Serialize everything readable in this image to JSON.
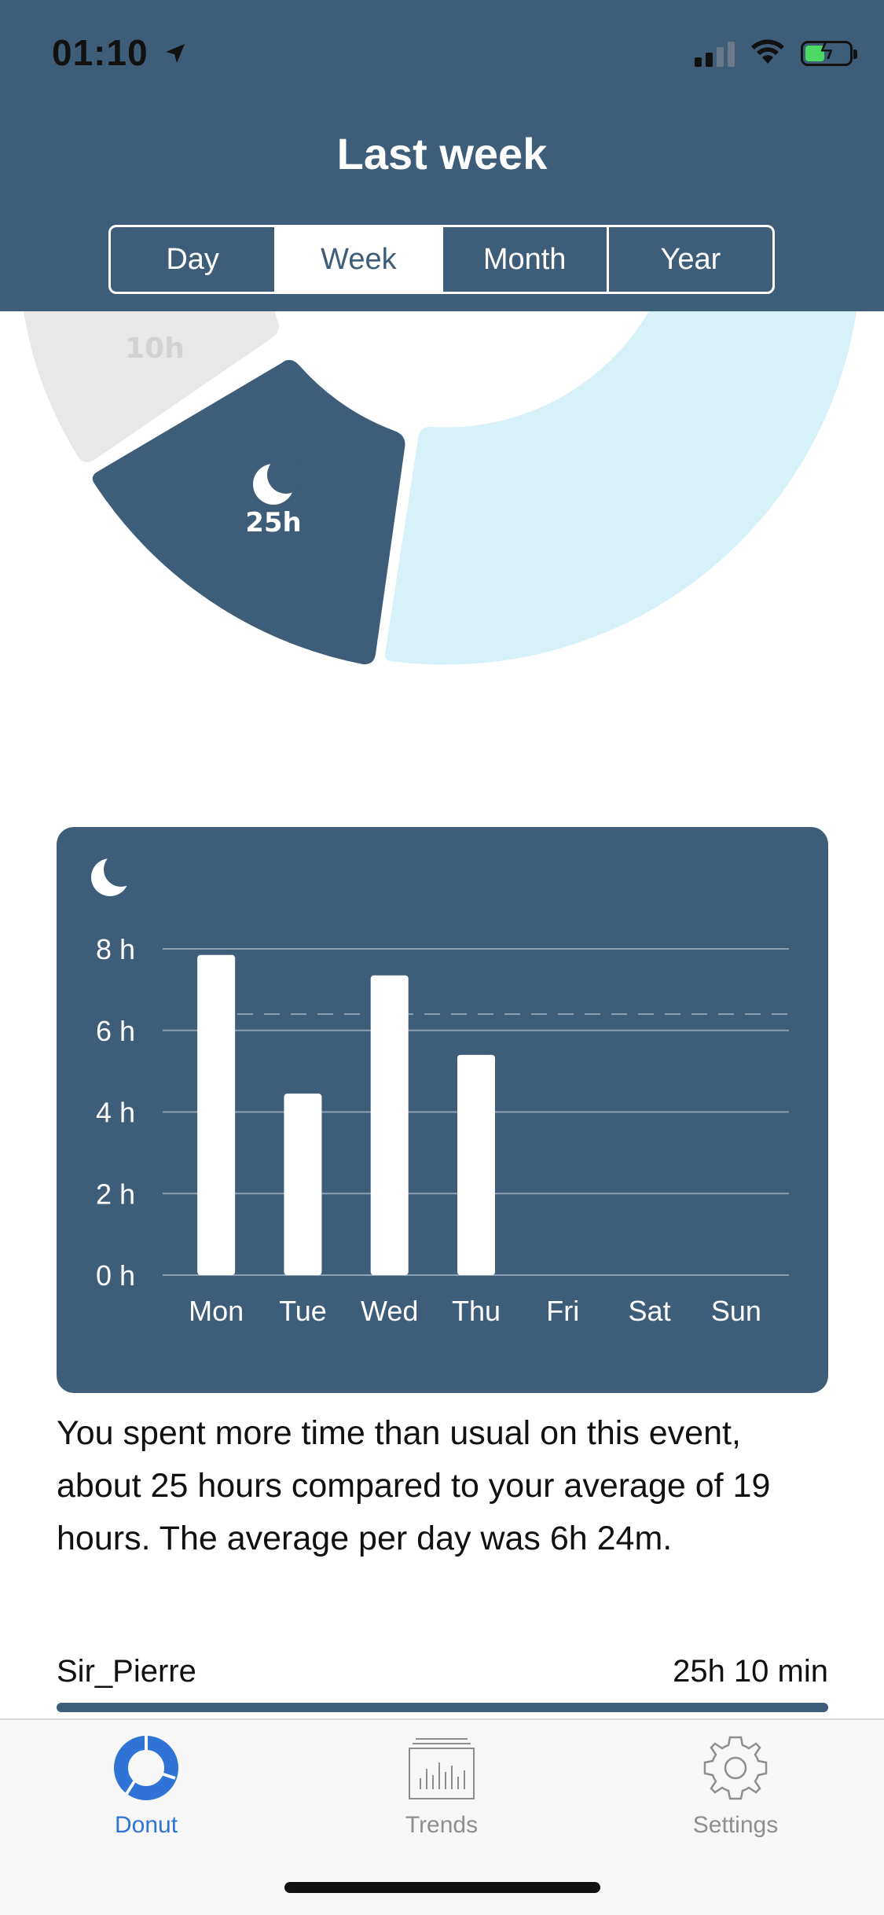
{
  "status_bar": {
    "time": "01:10"
  },
  "header": {
    "title": "Last week"
  },
  "segments": [
    {
      "label": "Day",
      "active": false
    },
    {
      "label": "Week",
      "active": true
    },
    {
      "label": "Month",
      "active": false
    },
    {
      "label": "Year",
      "active": false
    }
  ],
  "donut": {
    "highlight_label": "25h",
    "faded_label": "10h",
    "colors": {
      "highlight": "#3e5d78",
      "light": "#d6f1f7",
      "faded": "#e8e8e8"
    }
  },
  "chart_data": {
    "type": "bar",
    "categories": [
      "Mon",
      "Tue",
      "Wed",
      "Thu",
      "Fri",
      "Sat",
      "Sun"
    ],
    "values": [
      7.85,
      4.45,
      7.35,
      5.4,
      0,
      0,
      0
    ],
    "yticks": [
      "0 h",
      "2 h",
      "4 h",
      "6 h",
      "8 h"
    ],
    "ylim": [
      0,
      8
    ],
    "average_line": 6.4,
    "grid": true,
    "icon": "moon-icon"
  },
  "summary_text": "You spent more time than usual on this event, about 25 hours compared to your average of 19 hours. The average per day was 6h 24m.",
  "list_item": {
    "name": "Sir_Pierre",
    "value": "25h 10 min"
  },
  "tabbar": {
    "tabs": [
      {
        "label": "Donut",
        "icon": "donut-icon",
        "active": true
      },
      {
        "label": "Trends",
        "icon": "trends-icon",
        "active": false
      },
      {
        "label": "Settings",
        "icon": "gear-icon",
        "active": false
      }
    ]
  }
}
